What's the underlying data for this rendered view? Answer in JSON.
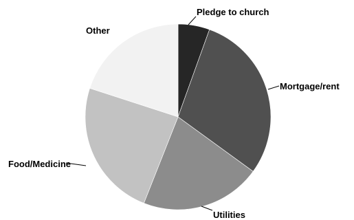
{
  "chart_data": {
    "type": "pie",
    "title": "",
    "start_angle_deg": 0,
    "direction": "clockwise",
    "legend": "none",
    "slices": [
      {
        "label": "Pledge to church",
        "value": 5.5,
        "color": "#262626"
      },
      {
        "label": "Mortgage/rent",
        "value": 29.5,
        "color": "#505050"
      },
      {
        "label": "Utilities",
        "value": 21,
        "color": "#8c8c8c"
      },
      {
        "label": "Food/Medicine",
        "value": 24,
        "color": "#c2c2c2"
      },
      {
        "label": "Other",
        "value": 20,
        "color": "#f2f2f2"
      }
    ]
  }
}
